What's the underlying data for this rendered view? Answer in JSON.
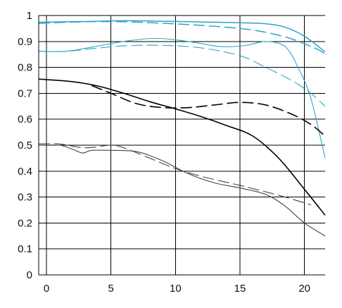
{
  "chart_data": {
    "type": "line",
    "title": "",
    "xlabel": "",
    "ylabel": "",
    "xlim": [
      -0.6,
      21.6
    ],
    "ylim": [
      0,
      1
    ],
    "x_ticks": [
      0,
      5,
      10,
      15,
      20
    ],
    "x_tick_labels": [
      "0",
      "5",
      "10",
      "15",
      "20"
    ],
    "y_ticks": [
      0,
      0.1,
      0.2,
      0.3,
      0.4,
      0.5,
      0.6,
      0.7,
      0.8,
      0.9,
      1
    ],
    "y_tick_labels": [
      "0",
      "0.1",
      "0.2",
      "0.3",
      "0.4",
      "0.5",
      "0.6",
      "0.7",
      "0.8",
      "0.9",
      "1"
    ],
    "grid": true,
    "legend": "none",
    "colors": {
      "cyan": "#2aa6c9",
      "black": "#000000",
      "gray": "#444444"
    },
    "series": [
      {
        "color": "cyan",
        "dash": false,
        "width": 1.5,
        "x": [
          -0.6,
          3,
          6,
          9,
          12,
          15,
          17,
          18.5,
          20,
          21.6
        ],
        "y": [
          0.974,
          0.977,
          0.98,
          0.978,
          0.975,
          0.972,
          0.968,
          0.955,
          0.92,
          0.86
        ]
      },
      {
        "color": "cyan",
        "dash": true,
        "width": 1.5,
        "x": [
          -0.6,
          3,
          6,
          9,
          12,
          15,
          17,
          19,
          21,
          21.6
        ],
        "y": [
          0.97,
          0.976,
          0.976,
          0.97,
          0.962,
          0.95,
          0.935,
          0.91,
          0.87,
          0.85
        ]
      },
      {
        "color": "cyan",
        "dash": false,
        "width": 1.1,
        "x": [
          -0.6,
          1.5,
          3.5,
          6,
          8.5,
          11,
          13.5,
          15.5,
          17,
          18.5,
          19.5,
          20.5,
          21.6
        ],
        "y": [
          0.862,
          0.862,
          0.878,
          0.9,
          0.912,
          0.9,
          0.88,
          0.885,
          0.9,
          0.88,
          0.8,
          0.68,
          0.45
        ]
      },
      {
        "color": "cyan",
        "dash": true,
        "width": 1.1,
        "x": [
          -0.6,
          1.5,
          3.5,
          6,
          9,
          12,
          15,
          17,
          19,
          20.5,
          21.6
        ],
        "y": [
          0.862,
          0.862,
          0.872,
          0.883,
          0.885,
          0.875,
          0.845,
          0.8,
          0.75,
          0.7,
          0.65
        ]
      },
      {
        "color": "black",
        "dash": false,
        "width": 1.6,
        "x": [
          -0.6,
          2,
          4,
          6,
          8,
          10,
          12,
          14,
          16,
          18,
          20,
          21.6
        ],
        "y": [
          0.755,
          0.745,
          0.728,
          0.7,
          0.668,
          0.64,
          0.61,
          0.575,
          0.535,
          0.45,
          0.33,
          0.23
        ]
      },
      {
        "color": "black",
        "dash": true,
        "width": 1.6,
        "x": [
          3.5,
          5,
          7,
          9,
          11,
          13,
          15,
          17,
          19,
          20.5,
          21.6
        ],
        "y": [
          0.73,
          0.7,
          0.66,
          0.645,
          0.645,
          0.655,
          0.665,
          0.655,
          0.62,
          0.58,
          0.535
        ]
      },
      {
        "color": "gray",
        "dash": false,
        "width": 1.1,
        "x": [
          -0.6,
          1,
          2,
          2.8,
          3.5,
          5,
          7,
          9,
          11,
          13,
          15,
          17,
          18.5,
          20,
          21.6
        ],
        "y": [
          0.5,
          0.5,
          0.485,
          0.47,
          0.48,
          0.48,
          0.475,
          0.44,
          0.39,
          0.355,
          0.335,
          0.31,
          0.265,
          0.2,
          0.15
        ]
      },
      {
        "color": "gray",
        "dash": true,
        "width": 1.1,
        "x": [
          -0.6,
          1,
          3,
          5,
          6,
          8,
          10,
          12,
          15,
          17,
          18.5,
          20.5
        ],
        "y": [
          0.505,
          0.505,
          0.49,
          0.5,
          0.49,
          0.45,
          0.41,
          0.38,
          0.345,
          0.32,
          0.3,
          0.27
        ]
      }
    ]
  }
}
